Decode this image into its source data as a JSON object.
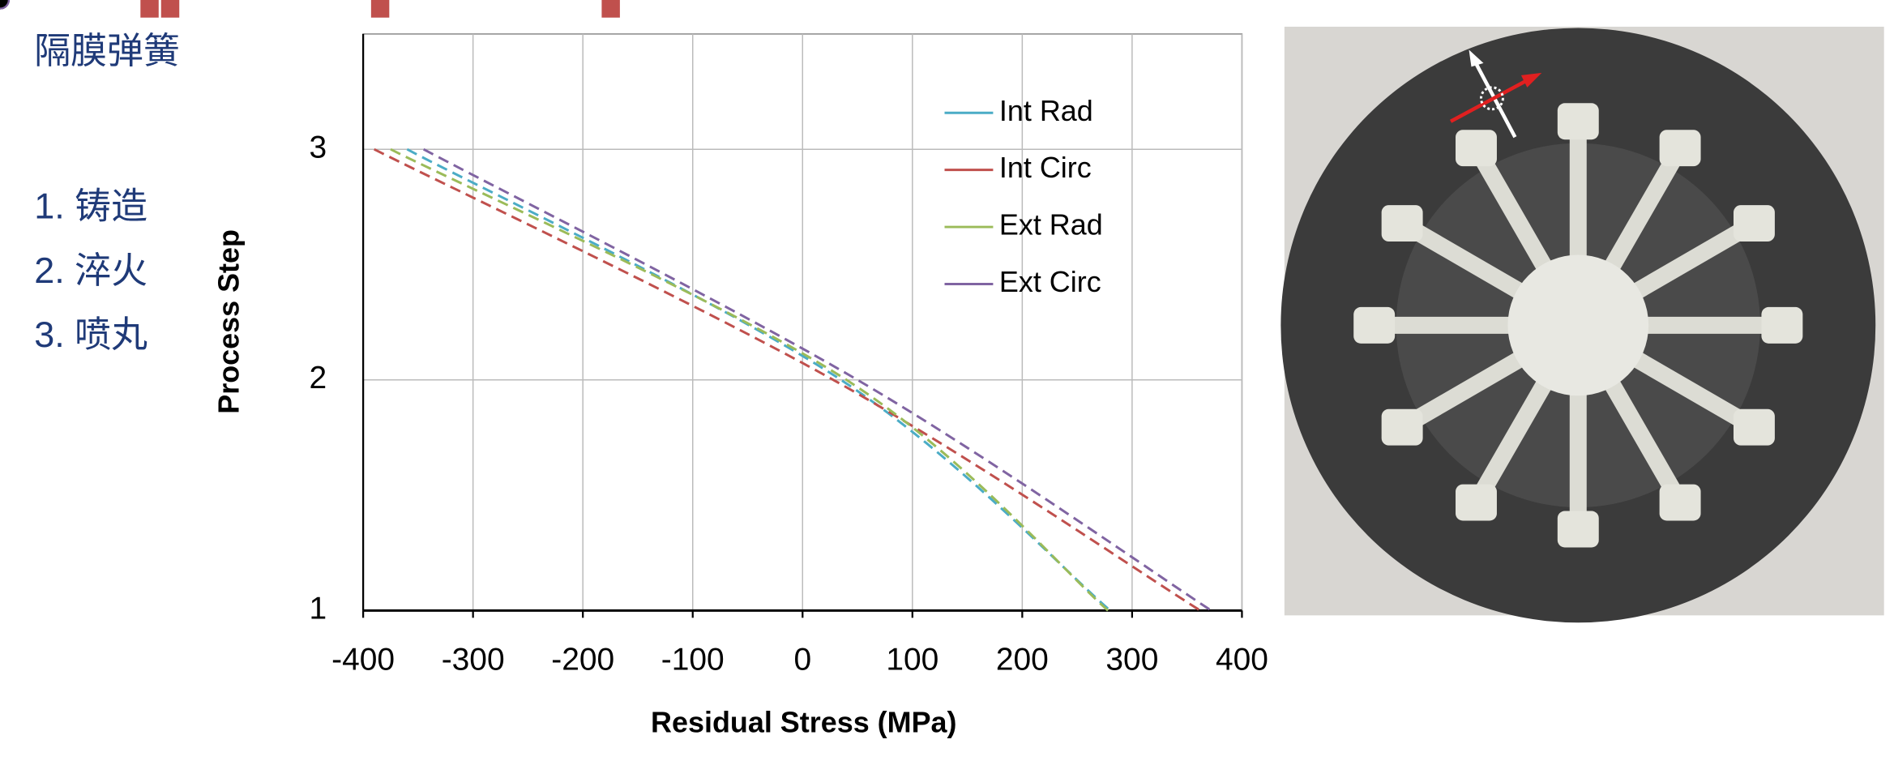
{
  "header": {
    "title": "隔膜弹簧",
    "steps": [
      "1. 铸造",
      "2. 淬火",
      "3. 喷丸"
    ]
  },
  "chart_data": {
    "type": "line",
    "x_label": "Residual Stress (MPa)",
    "y_label": "Process Step",
    "xlim": [
      -400,
      400
    ],
    "xticks": [
      -400,
      -300,
      -200,
      -100,
      0,
      100,
      200,
      300,
      400
    ],
    "ylim": [
      1,
      3.5
    ],
    "yticks": [
      1,
      2,
      3
    ],
    "grid": true,
    "legend": "upper-right",
    "series": [
      {
        "name": "Int Rad",
        "color": "#4bacc6",
        "marker": "diamond",
        "x": [
          -360,
          35,
          280
        ],
        "values": [
          3,
          2,
          1
        ]
      },
      {
        "name": "Int Circ",
        "color": "#c0504d",
        "marker": "square",
        "x": [
          -390,
          28,
          362
        ],
        "values": [
          3,
          2,
          1
        ]
      },
      {
        "name": "Ext Rad",
        "color": "#9bbb59",
        "marker": "triangle",
        "x": [
          -375,
          40,
          278
        ],
        "values": [
          3,
          2,
          1
        ]
      },
      {
        "name": "Ext Circ",
        "color": "#8064a2",
        "marker": "circle",
        "x": [
          -345,
          50,
          372
        ],
        "values": [
          3,
          2,
          1
        ]
      }
    ]
  }
}
